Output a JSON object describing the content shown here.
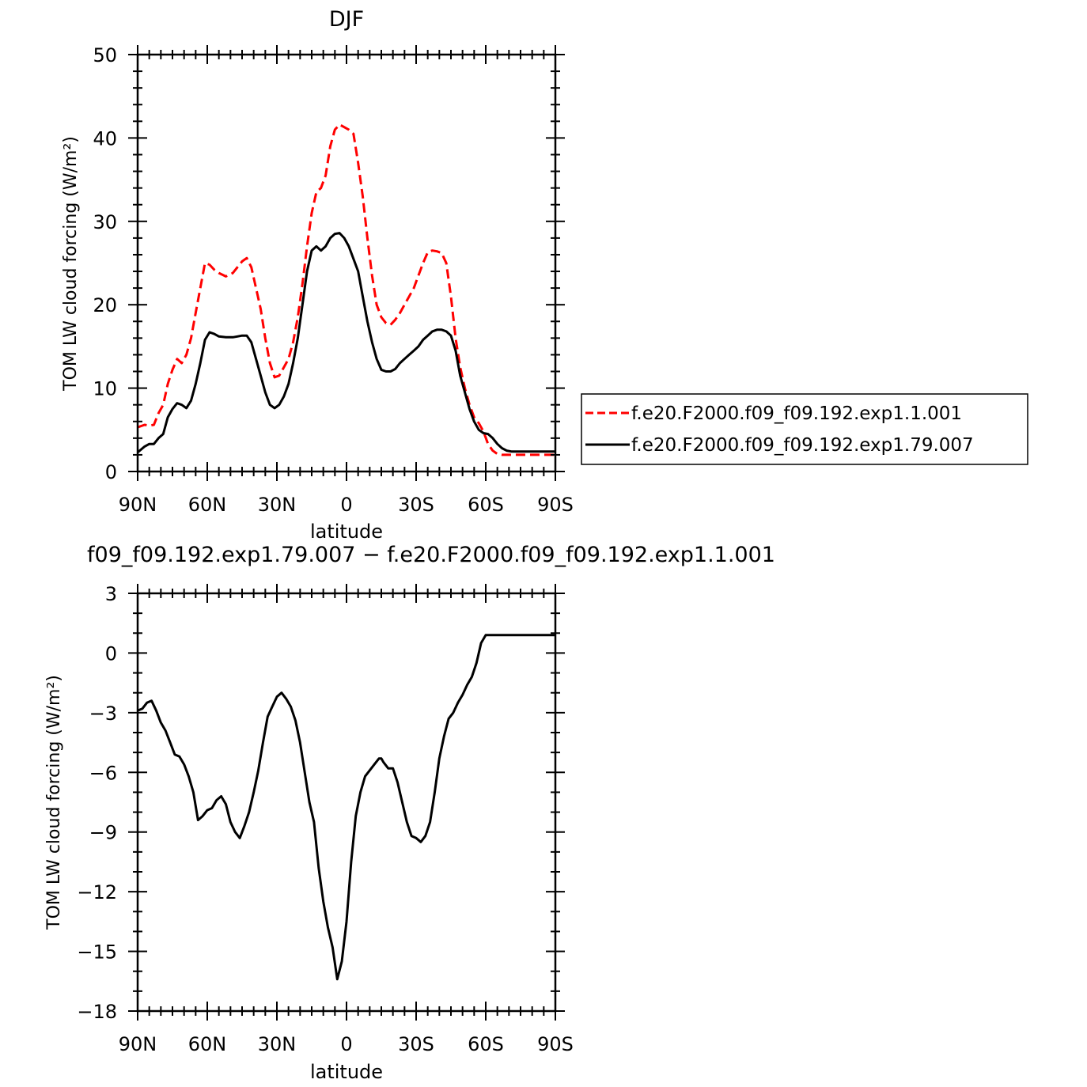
{
  "chart_data": [
    {
      "type": "line",
      "title": "DJF",
      "xlabel": "latitude",
      "ylabel": "TOM LW cloud forcing (W/m²)",
      "xlim": [
        -90,
        90
      ],
      "ylim": [
        0,
        50
      ],
      "xticks": [
        -90,
        -60,
        -30,
        0,
        30,
        60,
        90
      ],
      "xticklabels": [
        "90N",
        "60N",
        "30N",
        "0",
        "30S",
        "60S",
        "90S"
      ],
      "yticks": [
        0,
        10,
        20,
        30,
        40,
        50
      ],
      "yticklabels": [
        "0",
        "10",
        "20",
        "30",
        "40",
        "50"
      ],
      "legend_position": "right",
      "series": [
        {
          "name": "f.e20.F2000.f09_f09.192.exp1.1.001",
          "color": "#ff0000",
          "dash": "dashed",
          "x": [
            -90,
            -87,
            -85,
            -83,
            -81,
            -79,
            -77,
            -75,
            -73,
            -71,
            -69,
            -67,
            -65,
            -63,
            -61,
            -59,
            -57,
            -55,
            -52,
            -49,
            -47,
            -45,
            -43,
            -41,
            -39,
            -37,
            -35,
            -33,
            -31,
            -29,
            -27,
            -25,
            -23,
            -21,
            -19,
            -17,
            -15,
            -13,
            -11,
            -9,
            -7,
            -5,
            -3,
            -1,
            1,
            3,
            5,
            7,
            9,
            11,
            13,
            15,
            17,
            19,
            21,
            23,
            25,
            27,
            29,
            31,
            33,
            35,
            37,
            39,
            41,
            43,
            45,
            47,
            49,
            51,
            53,
            55,
            57,
            59,
            61,
            63,
            65,
            67,
            69,
            71,
            73,
            75,
            77,
            79,
            81,
            83,
            85,
            87,
            89,
            90
          ],
          "y": [
            5.3,
            5.6,
            5.5,
            5.6,
            7.0,
            8.0,
            10.5,
            12.2,
            13.5,
            13.0,
            14.0,
            16.0,
            19.0,
            22.0,
            25.0,
            24.8,
            24.2,
            23.8,
            23.4,
            23.8,
            24.5,
            25.2,
            25.6,
            24.5,
            22.0,
            19.5,
            16.0,
            13.0,
            11.3,
            11.5,
            12.5,
            13.5,
            15.5,
            18.5,
            22.5,
            27.0,
            31.0,
            33.5,
            34.0,
            35.5,
            39.0,
            41.0,
            41.6,
            41.3,
            41.0,
            40.5,
            37.0,
            33.0,
            28.0,
            23.5,
            20.0,
            18.5,
            17.8,
            17.6,
            18.2,
            19.0,
            20.0,
            21.0,
            22.0,
            23.5,
            25.0,
            26.3,
            26.5,
            26.4,
            26.2,
            25.0,
            21.0,
            16.0,
            12.5,
            10.0,
            8.0,
            6.5,
            5.8,
            4.8,
            3.3,
            2.5,
            2.1,
            2.0,
            2.0,
            2.0,
            2.0,
            2.0,
            2.0,
            2.0,
            2.0,
            2.0,
            2.0,
            2.0,
            2.0,
            2.0
          ]
        },
        {
          "name": "f.e20.F2000.f09_f09.192.exp1.79.007",
          "color": "#000000",
          "dash": "solid",
          "x": [
            -90,
            -87,
            -85,
            -83,
            -81,
            -79,
            -77,
            -75,
            -73,
            -71,
            -69,
            -67,
            -65,
            -63,
            -61,
            -59,
            -57,
            -55,
            -52,
            -49,
            -47,
            -45,
            -43,
            -41,
            -39,
            -37,
            -35,
            -33,
            -31,
            -29,
            -27,
            -25,
            -23,
            -21,
            -19,
            -17,
            -15,
            -13,
            -11,
            -9,
            -7,
            -5,
            -3,
            -1,
            1,
            3,
            5,
            7,
            9,
            11,
            13,
            15,
            17,
            19,
            21,
            23,
            25,
            27,
            29,
            31,
            33,
            35,
            37,
            39,
            41,
            43,
            45,
            47,
            49,
            51,
            53,
            55,
            57,
            59,
            61,
            63,
            65,
            67,
            69,
            71,
            73,
            75,
            77,
            79,
            81,
            83,
            85,
            87,
            89,
            90
          ],
          "y": [
            2.3,
            3.0,
            3.3,
            3.3,
            4.0,
            4.5,
            6.5,
            7.5,
            8.2,
            8.0,
            7.6,
            8.5,
            10.5,
            13.0,
            15.8,
            16.7,
            16.5,
            16.2,
            16.1,
            16.1,
            16.2,
            16.3,
            16.3,
            15.5,
            13.5,
            11.5,
            9.5,
            8.0,
            7.6,
            8.0,
            9.0,
            10.5,
            13.0,
            16.0,
            20.0,
            24.0,
            26.5,
            27.0,
            26.5,
            27.0,
            28.0,
            28.5,
            28.6,
            28.0,
            27.0,
            25.5,
            24.0,
            21.0,
            18.0,
            15.5,
            13.5,
            12.2,
            12.0,
            12.0,
            12.3,
            13.0,
            13.5,
            14.0,
            14.5,
            15.0,
            15.8,
            16.3,
            16.8,
            17.0,
            17.0,
            16.8,
            16.3,
            14.5,
            11.5,
            9.5,
            7.5,
            6.0,
            5.0,
            4.6,
            4.5,
            4.0,
            3.3,
            2.8,
            2.5,
            2.4,
            2.4,
            2.4,
            2.4,
            2.4,
            2.4,
            2.4,
            2.4,
            2.4,
            2.4,
            2.4
          ]
        }
      ]
    },
    {
      "type": "line",
      "title": "f09_f09.192.exp1.79.007 − f.e20.F2000.f09_f09.192.exp1.1.001",
      "xlabel": "latitude",
      "ylabel": "TOM LW cloud forcing (W/m²)",
      "xlim": [
        -90,
        90
      ],
      "ylim": [
        -18,
        3
      ],
      "xticks": [
        -90,
        -60,
        -30,
        0,
        30,
        60,
        90
      ],
      "xticklabels": [
        "90N",
        "60N",
        "30N",
        "0",
        "30S",
        "60S",
        "90S"
      ],
      "yticks": [
        3,
        0,
        -3,
        -6,
        -9,
        -12,
        -15,
        -18
      ],
      "yticklabels": [
        "3",
        "0",
        "−3",
        "−6",
        "−9",
        "−12",
        "−15",
        "−18"
      ],
      "series": [
        {
          "color": "#000000",
          "dash": "solid",
          "x": [
            -90,
            -88,
            -86,
            -84,
            -82,
            -80,
            -78,
            -76,
            -74,
            -72,
            -70,
            -68,
            -66,
            -64,
            -62,
            -60,
            -58,
            -56,
            -54,
            -52,
            -50,
            -48,
            -46,
            -44,
            -42,
            -40,
            -38,
            -36,
            -34,
            -32,
            -30,
            -28,
            -26,
            -24,
            -22,
            -20,
            -18,
            -16,
            -14,
            -12,
            -10,
            -8,
            -6,
            -4,
            -2,
            0,
            2,
            4,
            6,
            8,
            10,
            12,
            14,
            15,
            16,
            18,
            20,
            22,
            24,
            26,
            28,
            30,
            32,
            34,
            36,
            38,
            40,
            42,
            44,
            46,
            48,
            50,
            52,
            54,
            56,
            58,
            60,
            62,
            64,
            66,
            68,
            70,
            72,
            74,
            76,
            78,
            80,
            82,
            84,
            86,
            88,
            89,
            90
          ],
          "y": [
            -2.9,
            -2.8,
            -2.5,
            -2.4,
            -2.9,
            -3.5,
            -3.9,
            -4.5,
            -5.1,
            -5.2,
            -5.6,
            -6.2,
            -7.0,
            -8.4,
            -8.2,
            -7.9,
            -7.8,
            -7.4,
            -7.2,
            -7.6,
            -8.5,
            -9.0,
            -9.3,
            -8.7,
            -8.0,
            -7.0,
            -5.9,
            -4.5,
            -3.2,
            -2.7,
            -2.2,
            -2.0,
            -2.3,
            -2.7,
            -3.4,
            -4.5,
            -6.0,
            -7.5,
            -8.5,
            -10.8,
            -12.5,
            -13.8,
            -14.8,
            -16.4,
            -15.5,
            -13.5,
            -10.5,
            -8.2,
            -7.0,
            -6.2,
            -5.9,
            -5.6,
            -5.3,
            -5.3,
            -5.5,
            -5.8,
            -5.8,
            -6.5,
            -7.5,
            -8.5,
            -9.2,
            -9.3,
            -9.5,
            -9.2,
            -8.5,
            -7.0,
            -5.3,
            -4.2,
            -3.3,
            -3.0,
            -2.5,
            -2.1,
            -1.6,
            -1.2,
            -0.5,
            0.5,
            0.9,
            0.9,
            0.9,
            0.9,
            0.9,
            0.9,
            0.9,
            0.9,
            0.9,
            0.9,
            0.9,
            0.9,
            0.9,
            0.9,
            0.9,
            0.9,
            0.9
          ]
        }
      ]
    }
  ]
}
